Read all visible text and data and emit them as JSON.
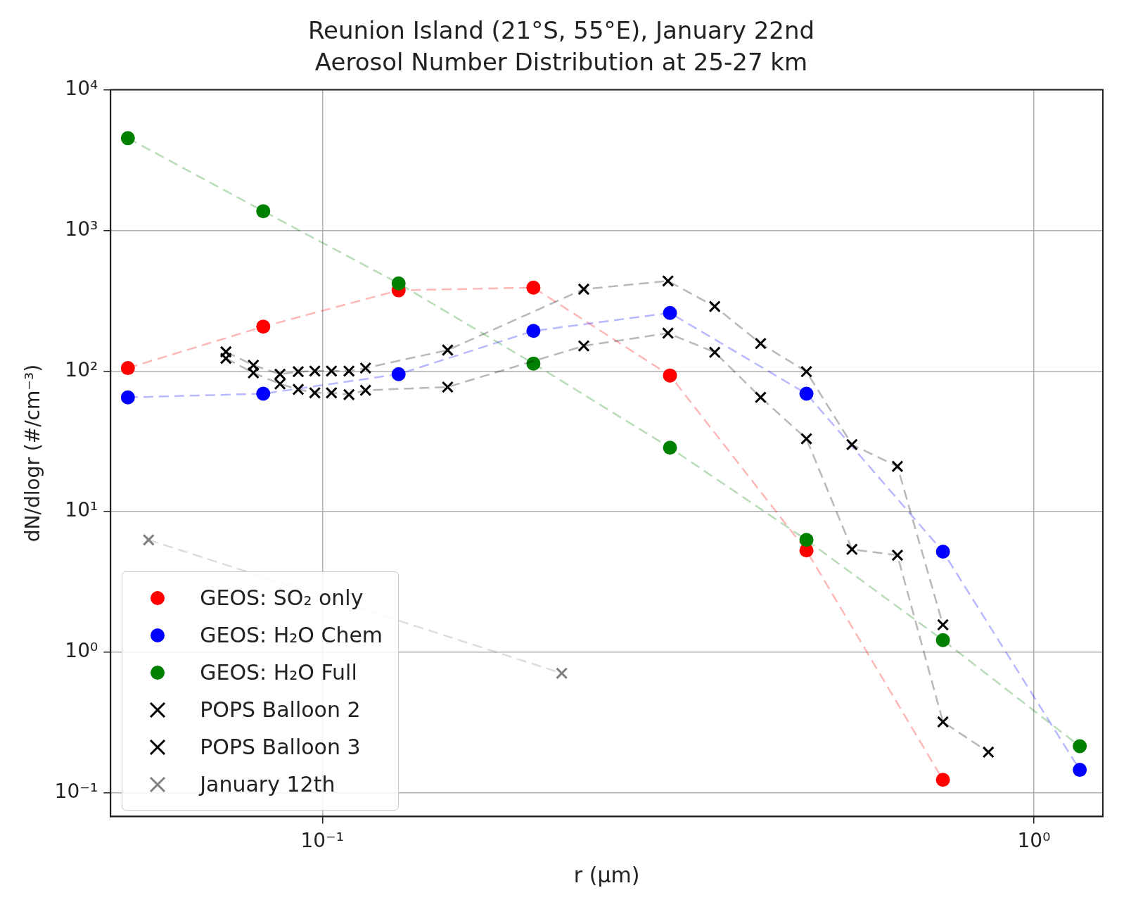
{
  "chart_data": {
    "type": "line",
    "title": "Reunion Island (21°S, 55°E), January 22nd",
    "subtitle": "Aerosol Number Distribution at 25-27 km",
    "xlabel": "r (μm)",
    "ylabel": "dN/dlogr (#/cm⁻³)",
    "log": "xy",
    "xlim": [
      0.0504,
      1.25
    ],
    "ylim": [
      0.068,
      10000
    ],
    "xticks": [
      {
        "value": 0.1,
        "label": "10⁻¹"
      },
      {
        "value": 1,
        "label": "10⁰"
      }
    ],
    "yticks": [
      {
        "value": 0.1,
        "label": "10⁻¹"
      },
      {
        "value": 1,
        "label": "10⁰"
      },
      {
        "value": 10,
        "label": "10¹"
      },
      {
        "value": 100,
        "label": "10²"
      },
      {
        "value": 1000,
        "label": "10³"
      },
      {
        "value": 10000,
        "label": "10⁴"
      }
    ],
    "grid": true,
    "legend": "bottom left",
    "line_style": "dashed",
    "series": [
      {
        "name": "GEOS: SO₂ only",
        "color": "#ff0000",
        "marker": "circle",
        "x": [
          0.0533,
          0.0826,
          0.128,
          0.198,
          0.308,
          0.479,
          0.745
        ],
        "values": [
          105,
          207,
          375,
          392,
          93,
          5.3,
          0.124
        ]
      },
      {
        "name": "GEOS: H₂O Chem",
        "color": "#0000ff",
        "marker": "circle",
        "x": [
          0.0533,
          0.0826,
          0.128,
          0.198,
          0.308,
          0.479,
          0.745,
          1.16
        ],
        "values": [
          65,
          69,
          95,
          193,
          259,
          69,
          5.2,
          0.146
        ]
      },
      {
        "name": "GEOS: H₂O Full",
        "color": "#008000",
        "marker": "circle",
        "x": [
          0.0533,
          0.0826,
          0.128,
          0.198,
          0.308,
          0.479,
          0.745,
          1.16
        ],
        "values": [
          4530,
          1370,
          420,
          113,
          28.5,
          6.3,
          1.22,
          0.215
        ]
      },
      {
        "name": "POPS Balloon 2",
        "color": "#000000",
        "marker": "cross",
        "x": [
          0.0732,
          0.08,
          0.0872,
          0.0925,
          0.0976,
          0.103,
          0.109,
          0.115,
          0.15,
          0.233,
          0.306,
          0.356,
          0.413,
          0.479,
          0.555,
          0.643,
          0.745
        ],
        "values": [
          137,
          110,
          95,
          99,
          100,
          100,
          100,
          105,
          141,
          382,
          437,
          288,
          157,
          99,
          30,
          21,
          1.57
        ]
      },
      {
        "name": "POPS Balloon 3",
        "color": "#000000",
        "marker": "cross",
        "x": [
          0.0732,
          0.08,
          0.0872,
          0.0925,
          0.0976,
          0.103,
          0.109,
          0.115,
          0.15,
          0.233,
          0.306,
          0.356,
          0.413,
          0.479,
          0.555,
          0.643,
          0.745,
          0.863
        ],
        "values": [
          123,
          97,
          81,
          74,
          70,
          70,
          68,
          73,
          77,
          151,
          186,
          136,
          65,
          33,
          5.4,
          4.9,
          0.32,
          0.195
        ]
      },
      {
        "name": "January 12th",
        "color": "#808080",
        "marker": "cross",
        "x": [
          0.057,
          0.217
        ],
        "values": [
          6.3,
          0.71
        ]
      }
    ]
  }
}
